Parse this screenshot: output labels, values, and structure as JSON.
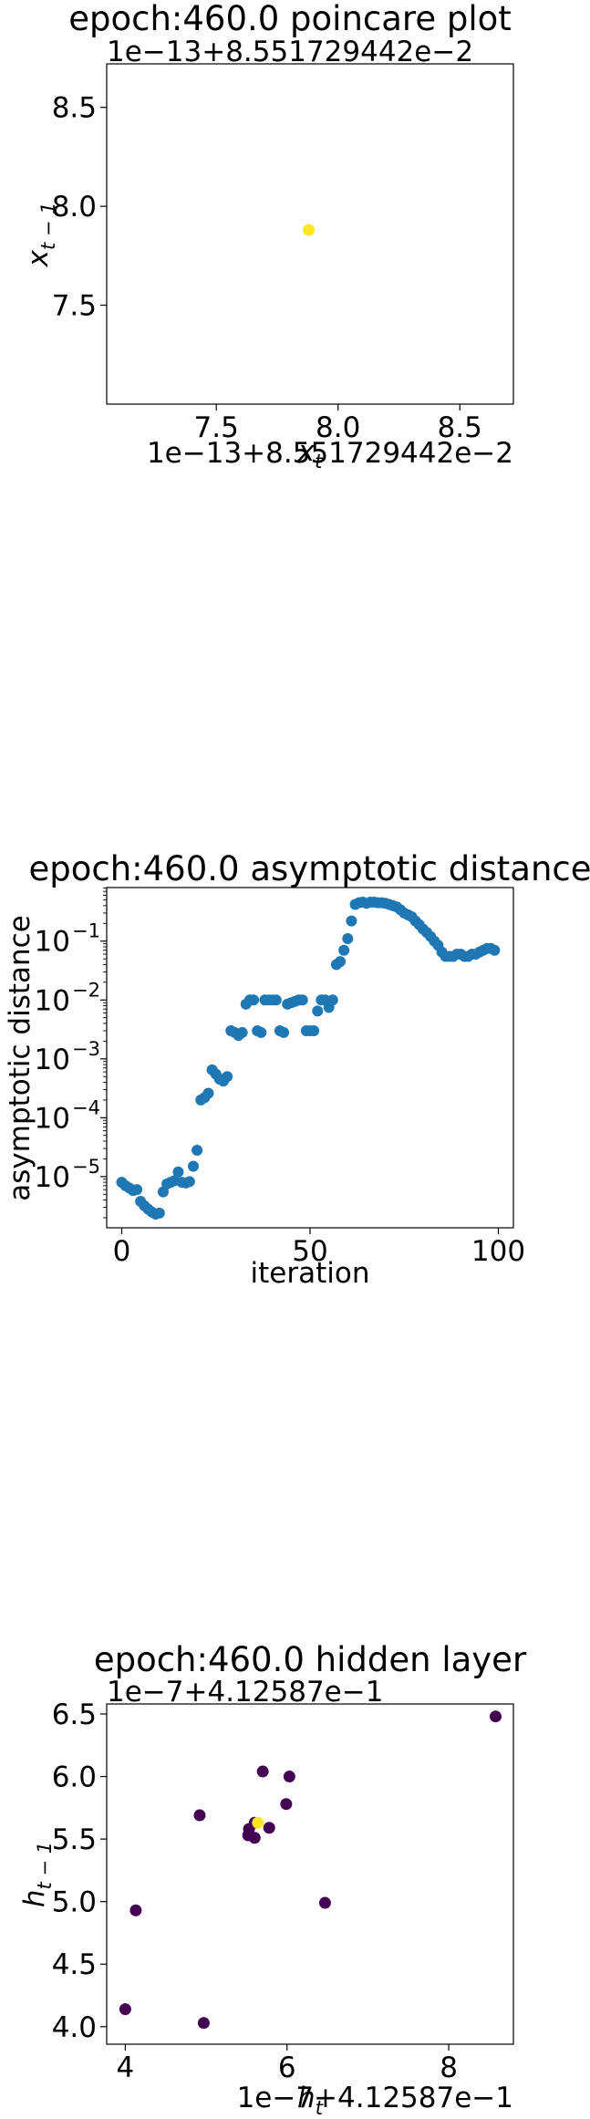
{
  "chart_data": [
    {
      "type": "scatter",
      "title": "epoch:460.0 poincare plot",
      "xlabel": "x_t",
      "ylabel": "x_{t-1}",
      "x_offset_text": "1e−13+8.551729442e−2",
      "y_offset_text": "1e−13+8.551729442e−2",
      "xlim": [
        7.05,
        8.72
      ],
      "ylim": [
        7.0,
        8.72
      ],
      "xticks": [
        7.5,
        8.0,
        8.5
      ],
      "yticks": [
        7.5,
        8.0,
        8.5
      ],
      "xtick_labels": [
        "7.5",
        "8.0",
        "8.5"
      ],
      "ytick_labels": [
        "7.5",
        "8.0",
        "8.5"
      ],
      "points": [
        {
          "x": 7.88,
          "y": 7.88,
          "color": "#fde725"
        }
      ]
    },
    {
      "type": "scatter",
      "title": "epoch:460.0 asymptotic distance",
      "xlabel": "iteration",
      "ylabel": "asymptotic distance",
      "y_scale": "log",
      "xlim": [
        -4,
        104
      ],
      "ylim_log10": [
        -5.87,
        -0.09
      ],
      "xticks": [
        0,
        50,
        100
      ],
      "xtick_labels": [
        "0",
        "50",
        "100"
      ],
      "yticks_log10": [
        -5,
        -4,
        -3,
        -2,
        -1
      ],
      "ytick_labels": [
        "10",
        "10",
        "10",
        "10",
        "10"
      ],
      "ytick_exponents": [
        "−5",
        "−4",
        "−3",
        "−2",
        "−1"
      ],
      "color": "#1f77b4",
      "x": [
        0,
        1,
        2,
        3,
        4,
        5,
        6,
        7,
        8,
        9,
        10,
        11,
        12,
        13,
        14,
        15,
        16,
        17,
        18,
        19,
        20,
        21,
        22,
        23,
        24,
        25,
        26,
        27,
        28,
        29,
        30,
        31,
        32,
        33,
        34,
        35,
        36,
        37,
        38,
        39,
        40,
        41,
        42,
        43,
        44,
        45,
        46,
        47,
        48,
        49,
        50,
        51,
        52,
        53,
        54,
        55,
        56,
        57,
        58,
        59,
        60,
        61,
        62,
        63,
        64,
        65,
        66,
        67,
        68,
        69,
        70,
        71,
        72,
        73,
        74,
        75,
        76,
        77,
        78,
        79,
        80,
        81,
        82,
        83,
        84,
        85,
        86,
        87,
        88,
        89,
        90,
        91,
        92,
        93,
        94,
        95,
        96,
        97,
        98,
        99
      ],
      "y": [
        8e-06,
        7e-06,
        6.4e-06,
        5.8e-06,
        6e-06,
        3.8e-06,
        3.2e-06,
        2.8e-06,
        2.5e-06,
        2.3e-06,
        2.4e-06,
        5.5e-06,
        7.5e-06,
        8e-06,
        8.5e-06,
        1.2e-05,
        8e-06,
        7.8e-06,
        8.2e-06,
        1.5e-05,
        2.8e-05,
        0.0002,
        0.00022,
        0.00026,
        0.00065,
        0.00055,
        0.00045,
        0.00042,
        0.0005,
        0.003,
        0.0028,
        0.0025,
        0.0028,
        0.0085,
        0.01,
        0.01,
        0.003,
        0.0028,
        0.01,
        0.01,
        0.01,
        0.01,
        0.003,
        0.0028,
        0.0085,
        0.009,
        0.0095,
        0.01,
        0.01,
        0.003,
        0.003,
        0.003,
        0.0065,
        0.01,
        0.01,
        0.0075,
        0.01,
        0.04,
        0.045,
        0.07,
        0.11,
        0.22,
        0.42,
        0.45,
        0.46,
        0.44,
        0.46,
        0.46,
        0.45,
        0.45,
        0.44,
        0.42,
        0.4,
        0.38,
        0.34,
        0.3,
        0.28,
        0.26,
        0.22,
        0.19,
        0.16,
        0.14,
        0.12,
        0.1,
        0.085,
        0.065,
        0.055,
        0.055,
        0.055,
        0.06,
        0.06,
        0.055,
        0.055,
        0.06,
        0.06,
        0.065,
        0.07,
        0.075,
        0.075,
        0.07
      ]
    },
    {
      "type": "scatter",
      "title": "epoch:460.0 hidden layer",
      "xlabel": "h_t",
      "ylabel": "h_{t-1}",
      "x_offset_text": "1e−7+4.12587e−1",
      "y_offset_text": "1e−7+4.12587e−1",
      "xlim": [
        3.77,
        8.8
      ],
      "ylim": [
        3.86,
        6.58
      ],
      "xticks": [
        4,
        6,
        8
      ],
      "xtick_labels": [
        "4",
        "6",
        "8"
      ],
      "yticks": [
        4.0,
        4.5,
        5.0,
        5.5,
        6.0,
        6.5
      ],
      "ytick_labels": [
        "4.0",
        "4.5",
        "5.0",
        "5.5",
        "6.0",
        "6.5"
      ],
      "points": [
        {
          "x": 8.58,
          "y": 6.48,
          "color": "#440154"
        },
        {
          "x": 5.7,
          "y": 6.04,
          "color": "#440154"
        },
        {
          "x": 6.03,
          "y": 6.0,
          "color": "#440154"
        },
        {
          "x": 5.99,
          "y": 5.78,
          "color": "#440154"
        },
        {
          "x": 4.92,
          "y": 5.69,
          "color": "#440154"
        },
        {
          "x": 5.6,
          "y": 5.63,
          "color": "#440154"
        },
        {
          "x": 5.78,
          "y": 5.59,
          "color": "#440154"
        },
        {
          "x": 5.53,
          "y": 5.58,
          "color": "#440154"
        },
        {
          "x": 5.52,
          "y": 5.53,
          "color": "#440154"
        },
        {
          "x": 5.6,
          "y": 5.51,
          "color": "#440154"
        },
        {
          "x": 4.13,
          "y": 4.93,
          "color": "#440154"
        },
        {
          "x": 6.47,
          "y": 4.99,
          "color": "#440154"
        },
        {
          "x": 4.0,
          "y": 4.14,
          "color": "#440154"
        },
        {
          "x": 4.97,
          "y": 4.03,
          "color": "#440154"
        },
        {
          "x": 5.64,
          "y": 5.63,
          "color": "#fde725"
        }
      ]
    }
  ]
}
